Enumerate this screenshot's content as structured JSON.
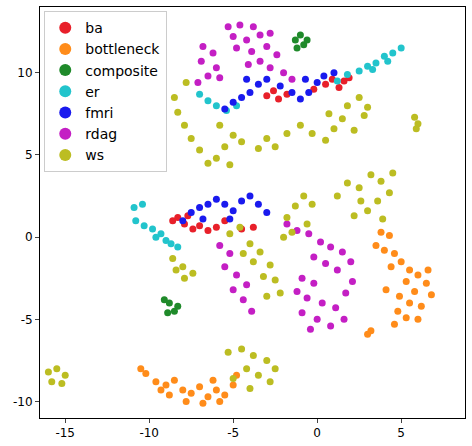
{
  "chart_data": {
    "type": "scatter",
    "xlim": [
      -16.5,
      8.8
    ],
    "ylim": [
      -11,
      14
    ],
    "xticks": [
      -15,
      -10,
      -5,
      0,
      5
    ],
    "yticks": [
      -10,
      -5,
      0,
      5,
      10
    ],
    "grid": false,
    "legend": "upper left",
    "marker": "circle",
    "series": [
      {
        "name": "ba",
        "color": "#e8202a",
        "values": [
          [
            -3.0,
            8.6
          ],
          [
            -2.6,
            8.9
          ],
          [
            -2.3,
            8.4
          ],
          [
            -1.8,
            8.7
          ],
          [
            0.5,
            9.3
          ],
          [
            0.9,
            9.6
          ],
          [
            1.3,
            9.1
          ],
          [
            1.6,
            9.5
          ],
          [
            1.9,
            9.7
          ],
          [
            -0.2,
            9.0
          ],
          [
            -8.6,
            1.0
          ],
          [
            -8.3,
            1.2
          ],
          [
            -7.9,
            0.8
          ],
          [
            -7.4,
            0.5
          ],
          [
            -7.0,
            0.7
          ],
          [
            -6.5,
            0.4
          ],
          [
            -6.0,
            0.6
          ],
          [
            -5.5,
            1.0
          ],
          [
            -4.5,
            0.5
          ],
          [
            -3.8,
            0.6
          ],
          [
            -7.7,
            1.3
          ]
        ]
      },
      {
        "name": "bottleneck",
        "color": "#ff8c1a",
        "values": [
          [
            3.8,
            0.3
          ],
          [
            4.3,
            0.1
          ],
          [
            3.5,
            -0.5
          ],
          [
            4.0,
            -0.8
          ],
          [
            4.6,
            -1.0
          ],
          [
            5.0,
            -1.5
          ],
          [
            4.4,
            -1.8
          ],
          [
            5.5,
            -2.0
          ],
          [
            6.0,
            -2.3
          ],
          [
            5.3,
            -2.7
          ],
          [
            6.5,
            -2.8
          ],
          [
            5.8,
            -3.3
          ],
          [
            6.8,
            -3.5
          ],
          [
            4.9,
            -3.6
          ],
          [
            5.5,
            -4.0
          ],
          [
            6.2,
            -4.2
          ],
          [
            4.8,
            -4.5
          ],
          [
            5.3,
            -4.9
          ],
          [
            6.0,
            -5.0
          ],
          [
            4.6,
            -5.3
          ],
          [
            3.2,
            -5.7
          ],
          [
            3.0,
            -5.9
          ],
          [
            4.1,
            -3.2
          ],
          [
            6.6,
            -2.0
          ],
          [
            -10.5,
            -8.0
          ],
          [
            -10.2,
            -8.3
          ],
          [
            -9.6,
            -8.8
          ],
          [
            -9.0,
            -9.0
          ],
          [
            -8.5,
            -8.7
          ],
          [
            -8.0,
            -9.3
          ],
          [
            -7.5,
            -9.5
          ],
          [
            -7.0,
            -9.1
          ],
          [
            -6.5,
            -9.7
          ],
          [
            -6.0,
            -9.3
          ],
          [
            -5.5,
            -9.6
          ],
          [
            -5.0,
            -9.0
          ],
          [
            -8.8,
            -9.6
          ],
          [
            -7.8,
            -10.0
          ],
          [
            -6.8,
            -10.1
          ],
          [
            -5.8,
            -10.0
          ],
          [
            -9.3,
            -9.3
          ],
          [
            -6.2,
            -8.7
          ],
          [
            -4.8,
            -8.4
          ]
        ]
      },
      {
        "name": "composite",
        "color": "#1f8a2a",
        "values": [
          [
            -1.3,
            12.0
          ],
          [
            -1.0,
            12.3
          ],
          [
            -0.8,
            11.7
          ],
          [
            -1.2,
            11.5
          ],
          [
            -0.6,
            12.0
          ],
          [
            -9.1,
            -3.8
          ],
          [
            -8.8,
            -4.0
          ],
          [
            -8.5,
            -4.5
          ],
          [
            -8.9,
            -4.6
          ],
          [
            -8.3,
            -4.2
          ]
        ]
      },
      {
        "name": "er",
        "color": "#22c4cc",
        "values": [
          [
            1.2,
            9.5
          ],
          [
            1.8,
            9.9
          ],
          [
            2.5,
            10.1
          ],
          [
            3.0,
            10.4
          ],
          [
            3.5,
            10.6
          ],
          [
            4.0,
            11.0
          ],
          [
            4.5,
            11.2
          ],
          [
            5.0,
            11.5
          ],
          [
            3.3,
            10.2
          ],
          [
            4.2,
            10.7
          ],
          [
            -7.0,
            8.7
          ],
          [
            -6.5,
            8.3
          ],
          [
            -6.0,
            8.0
          ],
          [
            -5.4,
            7.7
          ],
          [
            -4.8,
            8.0
          ],
          [
            -10.4,
            2.0
          ],
          [
            -10.9,
            1.8
          ],
          [
            -10.8,
            1.0
          ],
          [
            -10.3,
            0.7
          ],
          [
            -9.8,
            0.5
          ],
          [
            -9.3,
            0.2
          ],
          [
            -9.0,
            -0.2
          ],
          [
            -8.7,
            -0.4
          ],
          [
            -8.3,
            -0.6
          ],
          [
            -9.6,
            0.0
          ]
        ]
      },
      {
        "name": "fmri",
        "color": "#1a1aee",
        "values": [
          [
            -5.5,
            7.8
          ],
          [
            -5.0,
            8.2
          ],
          [
            -4.5,
            8.5
          ],
          [
            -4.0,
            8.8
          ],
          [
            -3.5,
            9.3
          ],
          [
            -3.0,
            9.6
          ],
          [
            -2.2,
            9.2
          ],
          [
            -1.5,
            8.8
          ],
          [
            -1.0,
            8.4
          ],
          [
            -0.5,
            8.8
          ],
          [
            0.0,
            9.4
          ],
          [
            0.4,
            9.8
          ],
          [
            1.0,
            10.0
          ],
          [
            -4.2,
            9.6
          ],
          [
            -0.7,
            9.6
          ],
          [
            -8.0,
            1.0
          ],
          [
            -7.5,
            1.5
          ],
          [
            -7.0,
            1.8
          ],
          [
            -6.5,
            2.0
          ],
          [
            -6.0,
            2.3
          ],
          [
            -5.5,
            2.0
          ],
          [
            -5.0,
            1.6
          ],
          [
            -4.5,
            2.2
          ],
          [
            -4.0,
            2.5
          ],
          [
            -3.5,
            2.0
          ],
          [
            -3.0,
            1.5
          ],
          [
            -6.8,
            1.1
          ],
          [
            -5.2,
            1.1
          ]
        ]
      },
      {
        "name": "rdag",
        "color": "#c41fc4",
        "values": [
          [
            -5.3,
            12.8
          ],
          [
            -4.6,
            12.9
          ],
          [
            -3.8,
            12.8
          ],
          [
            -5.0,
            12.2
          ],
          [
            -4.2,
            12.0
          ],
          [
            -3.4,
            12.3
          ],
          [
            -2.8,
            12.4
          ],
          [
            -4.8,
            11.5
          ],
          [
            -3.9,
            11.3
          ],
          [
            -3.0,
            11.6
          ],
          [
            -2.4,
            11.1
          ],
          [
            -3.4,
            10.7
          ],
          [
            -2.8,
            10.3
          ],
          [
            -2.0,
            10.0
          ],
          [
            -1.5,
            9.6
          ],
          [
            -4.1,
            10.5
          ],
          [
            -6.8,
            11.6
          ],
          [
            -6.2,
            11.2
          ],
          [
            -6.9,
            10.7
          ],
          [
            -6.0,
            10.3
          ],
          [
            -6.5,
            9.8
          ],
          [
            -7.1,
            9.4
          ],
          [
            -5.8,
            9.7
          ],
          [
            -1.8,
            0.8
          ],
          [
            -1.2,
            0.4
          ],
          [
            -0.5,
            0.2
          ],
          [
            0.2,
            -0.3
          ],
          [
            0.8,
            -0.6
          ],
          [
            1.5,
            -0.9
          ],
          [
            2.0,
            -1.5
          ],
          [
            1.2,
            -2.0
          ],
          [
            0.5,
            -1.6
          ],
          [
            -0.2,
            -1.2
          ],
          [
            -0.9,
            -2.5
          ],
          [
            -0.2,
            -2.8
          ],
          [
            2.1,
            -2.7
          ],
          [
            -5.8,
            -0.5
          ],
          [
            -5.2,
            -1.0
          ],
          [
            -5.5,
            -1.8
          ],
          [
            -4.8,
            -2.3
          ],
          [
            -4.2,
            -2.9
          ],
          [
            -5.0,
            -3.2
          ],
          [
            -4.4,
            -3.8
          ],
          [
            -3.9,
            -4.5
          ],
          [
            -1.2,
            -3.3
          ],
          [
            -0.6,
            -3.7
          ],
          [
            0.3,
            -4.0
          ],
          [
            1.1,
            -4.3
          ],
          [
            -0.9,
            -4.6
          ],
          [
            0.0,
            -5.0
          ],
          [
            0.8,
            -5.4
          ],
          [
            1.6,
            -5.0
          ],
          [
            -0.4,
            -5.6
          ],
          [
            1.7,
            -3.4
          ]
        ]
      },
      {
        "name": "ws",
        "color": "#bcbd22",
        "values": [
          [
            -8.5,
            8.5
          ],
          [
            -8.3,
            7.6
          ],
          [
            -7.9,
            6.8
          ],
          [
            -7.5,
            6.0
          ],
          [
            -7.0,
            5.3
          ],
          [
            -6.5,
            4.5
          ],
          [
            -6.0,
            4.8
          ],
          [
            -5.5,
            5.5
          ],
          [
            -5.0,
            6.2
          ],
          [
            -4.5,
            5.8
          ],
          [
            -5.2,
            4.4
          ],
          [
            -7.8,
            9.4
          ],
          [
            -5.8,
            6.8
          ],
          [
            -3.5,
            5.4
          ],
          [
            -3.0,
            6.0
          ],
          [
            -2.5,
            5.5
          ],
          [
            -1.8,
            6.3
          ],
          [
            -1.0,
            6.8
          ],
          [
            -0.3,
            6.3
          ],
          [
            0.5,
            5.9
          ],
          [
            1.0,
            6.6
          ],
          [
            1.5,
            7.2
          ],
          [
            2.2,
            6.5
          ],
          [
            2.8,
            7.4
          ],
          [
            1.8,
            8.0
          ],
          [
            2.5,
            8.5
          ],
          [
            3.0,
            7.9
          ],
          [
            0.7,
            7.5
          ],
          [
            5.8,
            7.3
          ],
          [
            6.0,
            6.9
          ],
          [
            5.9,
            6.6
          ],
          [
            1.2,
            2.5
          ],
          [
            1.8,
            3.3
          ],
          [
            2.5,
            3.0
          ],
          [
            3.2,
            3.8
          ],
          [
            3.8,
            3.4
          ],
          [
            4.3,
            2.7
          ],
          [
            3.6,
            2.2
          ],
          [
            3.0,
            1.6
          ],
          [
            2.2,
            1.3
          ],
          [
            3.9,
            1.1
          ],
          [
            4.5,
            3.9
          ],
          [
            2.6,
            2.2
          ],
          [
            -1.8,
            1.2
          ],
          [
            -1.3,
            1.9
          ],
          [
            -0.8,
            2.5
          ],
          [
            -0.3,
            2.0
          ],
          [
            -0.6,
            0.8
          ],
          [
            -1.5,
            0.3
          ],
          [
            -8.6,
            -1.3
          ],
          [
            -8.0,
            -1.8
          ],
          [
            -7.4,
            -2.2
          ],
          [
            -7.9,
            -2.5
          ],
          [
            -8.4,
            -2.0
          ],
          [
            -5.2,
            0.2
          ],
          [
            -4.6,
            0.6
          ],
          [
            -4.0,
            -0.4
          ],
          [
            -3.4,
            -0.9
          ],
          [
            -2.8,
            -1.7
          ],
          [
            -3.8,
            -1.5
          ],
          [
            -4.4,
            -1.0
          ],
          [
            -2.5,
            -2.6
          ],
          [
            -3.2,
            -2.4
          ],
          [
            -2.2,
            -3.4
          ],
          [
            -3.0,
            -3.6
          ],
          [
            -2.0,
            0.0
          ],
          [
            -5.3,
            -7.0
          ],
          [
            -4.5,
            -6.8
          ],
          [
            -3.8,
            -7.2
          ],
          [
            -3.0,
            -7.5
          ],
          [
            -2.5,
            -8.0
          ],
          [
            -3.5,
            -8.4
          ],
          [
            -4.2,
            -8.0
          ],
          [
            -5.0,
            -8.6
          ],
          [
            -4.0,
            -9.2
          ],
          [
            -2.8,
            -8.8
          ],
          [
            -16.0,
            -8.2
          ],
          [
            -15.5,
            -8.0
          ],
          [
            -15.0,
            -8.4
          ],
          [
            -15.8,
            -8.8
          ],
          [
            -15.2,
            -8.9
          ]
        ]
      }
    ]
  }
}
